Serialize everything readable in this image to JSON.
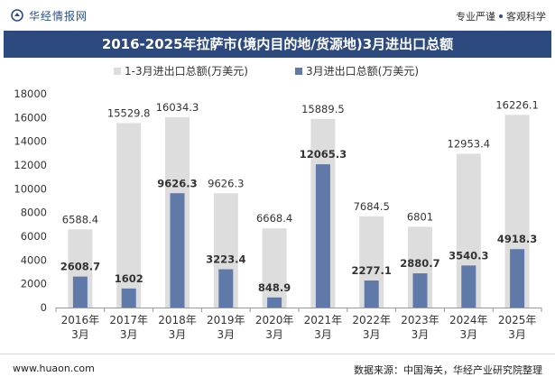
{
  "header": {
    "brand": "华经情报网",
    "tagline_left": "专业严谨",
    "tagline_right": "客观科学"
  },
  "title": "2016-2025年拉萨市(境内目的地/货源地)3月进出口总额",
  "colors": {
    "header_bg": "#2d4a7f",
    "series_total": "#dddddd",
    "series_march": "#5f79a8",
    "brand": "#2b4f8a"
  },
  "chart_data": {
    "type": "bar",
    "categories": [
      [
        "2016年",
        "3月"
      ],
      [
        "2017年",
        "3月"
      ],
      [
        "2018年",
        "3月"
      ],
      [
        "2019年",
        "3月"
      ],
      [
        "2020年",
        "3月"
      ],
      [
        "2021年",
        "3月"
      ],
      [
        "2022年",
        "3月"
      ],
      [
        "2023年",
        "3月"
      ],
      [
        "2024年",
        "3月"
      ],
      [
        "2025年",
        "3月"
      ]
    ],
    "series": [
      {
        "name": "1-3月进出口总额(万美元)",
        "color": "#dddddd",
        "values": [
          6588.4,
          15529.8,
          16034.3,
          9626.3,
          6668.4,
          15889.5,
          7684.5,
          6801,
          12953.4,
          16226.1
        ],
        "labels": [
          "6588.4",
          "15529.8",
          "16034.3",
          "9626.3",
          "6668.4",
          "15889.5",
          "7684.5",
          "6801",
          "12953.4",
          "16226.1"
        ]
      },
      {
        "name": "3月进出口总额(万美元)",
        "color": "#5f79a8",
        "values": [
          2608.7,
          1602,
          9626.3,
          3223.4,
          848.9,
          12065.3,
          2277.1,
          2880.7,
          3540.3,
          4918.3
        ],
        "labels": [
          "2608.7",
          "1602",
          "9626.3",
          "3223.4",
          "848.9",
          "12065.3",
          "2277.1",
          "2880.7",
          "3540.3",
          "4918.3"
        ]
      }
    ],
    "ylim": [
      0,
      18000
    ],
    "yticks": [
      0,
      2000,
      4000,
      6000,
      8000,
      10000,
      12000,
      14000,
      16000,
      18000
    ],
    "grid": false,
    "legend_position": "top"
  },
  "footer": {
    "site": "www.huaon.com",
    "source": "数据来源：中国海关，华经产业研究院整理"
  }
}
